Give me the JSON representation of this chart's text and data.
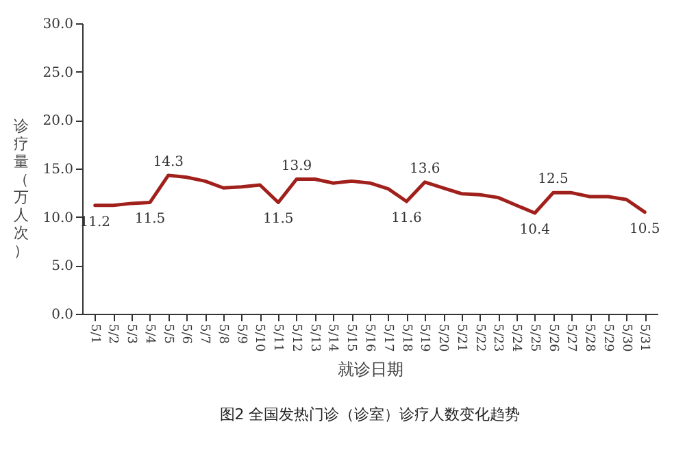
{
  "chart_data": {
    "type": "line",
    "xlabel": "就诊日期",
    "ylabel": "诊疗量（万人次）",
    "annotations": [
      "图2 全国发热门诊（诊室）诊疗人数变化趋势"
    ],
    "categories": [
      "5/1",
      "5/2",
      "5/3",
      "5/4",
      "5/5",
      "5/6",
      "5/7",
      "5/8",
      "5/9",
      "5/10",
      "5/11",
      "5/12",
      "5/13",
      "5/14",
      "5/15",
      "5/16",
      "5/17",
      "5/18",
      "5/19",
      "5/20",
      "5/21",
      "5/22",
      "5/23",
      "5/24",
      "5/25",
      "5/26",
      "5/27",
      "5/28",
      "5/29",
      "5/30",
      "5/31"
    ],
    "series": [
      {
        "color": "#a0201c",
        "values": [
          11.2,
          11.2,
          11.4,
          11.5,
          14.3,
          14.1,
          13.7,
          13.0,
          13.1,
          13.3,
          11.5,
          13.9,
          13.9,
          13.5,
          13.7,
          13.5,
          12.9,
          11.6,
          13.6,
          13.0,
          12.4,
          12.3,
          12.0,
          11.2,
          10.4,
          12.5,
          12.5,
          12.1,
          12.1,
          11.8,
          10.5
        ],
        "value_labels": [
          "11.2",
          null,
          null,
          "11.5",
          "14.3",
          null,
          null,
          null,
          null,
          null,
          "11.5",
          "13.9",
          null,
          null,
          null,
          null,
          null,
          "11.6",
          "13.6",
          null,
          null,
          null,
          null,
          null,
          "10.4",
          "12.5",
          null,
          null,
          null,
          null,
          "10.5"
        ]
      }
    ],
    "ylim": [
      0,
      30
    ],
    "yticks": [
      {
        "value": 0,
        "label": "0.0"
      },
      {
        "value": 5,
        "label": "5.0"
      },
      {
        "value": 10,
        "label": "10.0"
      },
      {
        "value": 15,
        "label": "15.0"
      },
      {
        "value": 20,
        "label": "20.0"
      },
      {
        "value": 25,
        "label": "25.0"
      },
      {
        "value": 30,
        "label": "30.0"
      }
    ],
    "marker": "none",
    "line_style": "solid"
  }
}
